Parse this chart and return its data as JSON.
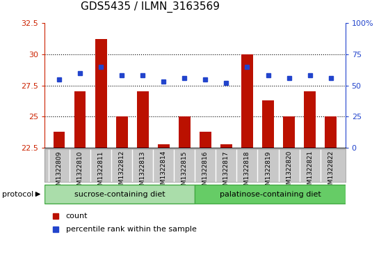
{
  "title": "GDS5435 / ILMN_3163569",
  "samples": [
    "GSM1322809",
    "GSM1322810",
    "GSM1322811",
    "GSM1322812",
    "GSM1322813",
    "GSM1322814",
    "GSM1322815",
    "GSM1322816",
    "GSM1322817",
    "GSM1322818",
    "GSM1322819",
    "GSM1322820",
    "GSM1322821",
    "GSM1322822"
  ],
  "counts": [
    23.8,
    27.0,
    31.2,
    25.0,
    27.0,
    22.8,
    25.0,
    23.8,
    22.8,
    30.0,
    26.3,
    25.0,
    27.0,
    25.0
  ],
  "percentile_ranks": [
    55,
    60,
    65,
    58,
    58,
    53,
    56,
    55,
    52,
    65,
    58,
    56,
    58,
    56
  ],
  "ylim_left": [
    22.5,
    32.5
  ],
  "ylim_right": [
    0,
    100
  ],
  "yticks_left": [
    22.5,
    25.0,
    27.5,
    30.0,
    32.5
  ],
  "ytick_labels_left": [
    "22.5",
    "25",
    "27.5",
    "30",
    "32.5"
  ],
  "yticks_right": [
    0,
    25,
    50,
    75,
    100
  ],
  "ytick_labels_right": [
    "0",
    "25",
    "50",
    "75",
    "100%"
  ],
  "bar_color": "#bb1100",
  "dot_color": "#2244cc",
  "background_color": "#ffffff",
  "label_box_color": "#c8c8c8",
  "label_box_edge_color": "#999999",
  "group1_label": "sucrose-containing diet",
  "group2_label": "palatinose-containing diet",
  "group_color_light": "#aaddaa",
  "group_color_dark": "#66cc66",
  "group_edge_color": "#44aa44",
  "group1_samples": 7,
  "group2_samples": 7,
  "protocol_label": "protocol",
  "legend_count_label": "count",
  "legend_pct_label": "percentile rank within the sample",
  "title_fontsize": 11,
  "axis_fontsize": 8,
  "label_fontsize": 6.5,
  "bar_width": 0.55,
  "grid_yticks": [
    25.0,
    27.5,
    30.0
  ]
}
